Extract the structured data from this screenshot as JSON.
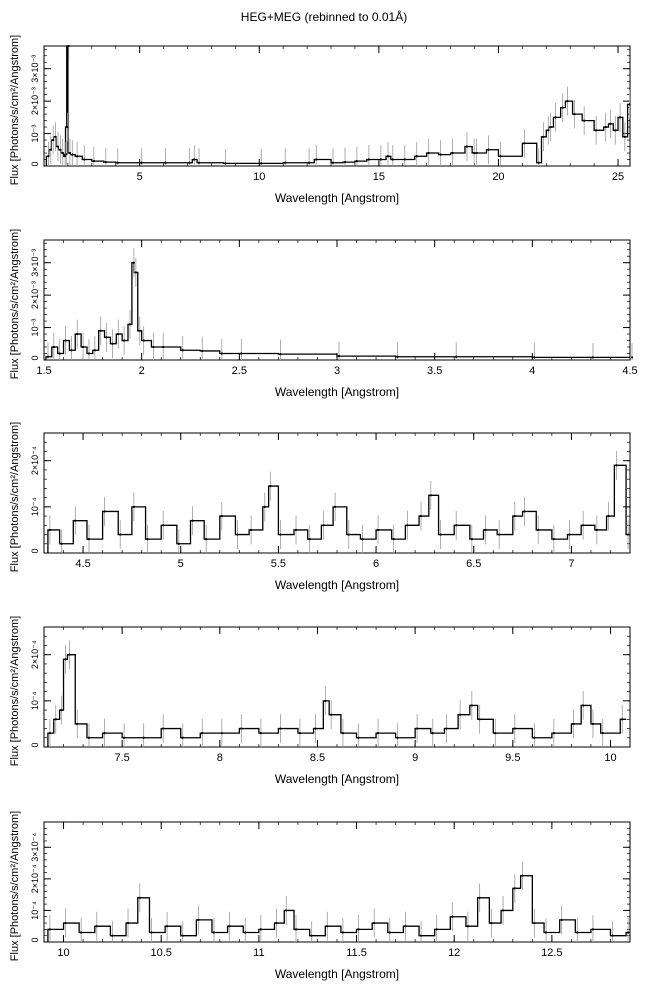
{
  "title": "HEG+MEG (rebinned to 0.01Å)",
  "chart_data": [
    {
      "type": "line",
      "xlabel": "Wavelength [Angstrom]",
      "ylabel": "Flux [Photons/s/cm²/Angstrom]",
      "xlim": [
        1.0,
        25.5
      ],
      "ylim": [
        0,
        0.0037
      ],
      "xticks": [
        5,
        10,
        15,
        20,
        25
      ],
      "xtick_labels": [
        "5",
        "10",
        "15",
        "20",
        "25"
      ],
      "yticks": [
        0.001,
        0.002,
        0.003
      ],
      "ytick_labels": [
        "10⁻³",
        "2×10⁻³",
        "3×10⁻³"
      ],
      "x": [
        1.1,
        1.2,
        1.3,
        1.4,
        1.5,
        1.6,
        1.7,
        1.8,
        1.85,
        1.9,
        1.95,
        2.0,
        2.1,
        2.3,
        2.6,
        3.0,
        3.5,
        4.0,
        5.0,
        6.0,
        7.0,
        7.2,
        7.4,
        8.5,
        10.0,
        11.0,
        12.0,
        12.3,
        13.0,
        13.5,
        14.0,
        14.5,
        15.0,
        15.3,
        15.5,
        16.0,
        16.5,
        17.0,
        17.5,
        18.0,
        18.6,
        18.9,
        19.0,
        19.5,
        20.0,
        21.0,
        21.6,
        21.8,
        22.0,
        22.1,
        22.3,
        22.6,
        22.8,
        23.1,
        23.5,
        24.0,
        24.4,
        24.6,
        24.8,
        25.0,
        25.2,
        25.4
      ],
      "y": [
        0.0003,
        0.0005,
        0.0008,
        0.0009,
        0.0006,
        0.0005,
        0.0004,
        0.0003,
        0.00036,
        0.0012,
        0.0037,
        0.0004,
        0.00035,
        0.0003,
        0.0002,
        0.00015,
        0.00012,
        0.0001,
        0.0001,
        0.0001,
        0.0001,
        0.0002,
        0.0001,
        8e-05,
        8e-05,
        0.0001,
        0.0001,
        0.0002,
        0.0001,
        0.00012,
        0.00015,
        0.0002,
        0.0002,
        0.0003,
        0.0002,
        0.0002,
        0.0003,
        0.0004,
        0.00035,
        0.0004,
        0.0006,
        0.0004,
        0.0004,
        0.0005,
        0.0003,
        0.0007,
        0.0001,
        0.0009,
        0.0011,
        0.0012,
        0.0015,
        0.0018,
        0.002,
        0.0016,
        0.0014,
        0.0011,
        0.0012,
        0.0013,
        0.0011,
        0.0015,
        0.0009,
        0.0019
      ]
    },
    {
      "type": "line",
      "xlabel": "Wavelength [Angstrom]",
      "ylabel": "Flux [Photons/s/cm²/Angstrom]",
      "xlim": [
        1.5,
        4.5
      ],
      "ylim": [
        0,
        0.0037
      ],
      "xticks": [
        1.5,
        2,
        2.5,
        3,
        3.5,
        4,
        4.5
      ],
      "xtick_labels": [
        "1.5",
        "2",
        "2.5",
        "3",
        "3.5",
        "4",
        "4.5"
      ],
      "yticks": [
        0.001,
        0.002,
        0.003
      ],
      "ytick_labels": [
        "10⁻³",
        "2×10⁻³",
        "3×10⁻³"
      ],
      "x": [
        1.51,
        1.54,
        1.57,
        1.6,
        1.63,
        1.66,
        1.69,
        1.72,
        1.75,
        1.78,
        1.81,
        1.84,
        1.87,
        1.9,
        1.93,
        1.95,
        1.96,
        1.98,
        2.0,
        2.05,
        2.1,
        2.2,
        2.3,
        2.4,
        2.5,
        2.7,
        3.0,
        3.3,
        3.6,
        4.0,
        4.3,
        4.5
      ],
      "y": [
        0.0001,
        0.0004,
        0.0002,
        0.0006,
        0.0003,
        0.0008,
        0.0004,
        0.0002,
        0.0003,
        0.0009,
        0.0007,
        0.0005,
        0.0008,
        0.0006,
        0.0011,
        0.003,
        0.0027,
        0.0009,
        0.0006,
        0.0004,
        0.0004,
        0.0003,
        0.00028,
        0.0002,
        0.0002,
        0.00018,
        0.00012,
        0.0001,
        0.0001,
        8e-05,
        8e-05,
        8e-05
      ]
    },
    {
      "type": "line",
      "xlabel": "Wavelength [Angstrom]",
      "ylabel": "Flux [Photons/s/cm²/Angstrom]",
      "xlim": [
        4.3,
        7.3
      ],
      "ylim": [
        0,
        0.00026
      ],
      "xticks": [
        4.5,
        5,
        5.5,
        6,
        6.5,
        7
      ],
      "xtick_labels": [
        "4.5",
        "5",
        "5.5",
        "6",
        "6.5",
        "7"
      ],
      "yticks": [
        0.0001,
        0.0002
      ],
      "ytick_labels": [
        "10⁻⁴",
        "2×10⁻⁴"
      ],
      "x": [
        4.32,
        4.38,
        4.45,
        4.52,
        4.6,
        4.68,
        4.75,
        4.82,
        4.9,
        4.98,
        5.05,
        5.12,
        5.2,
        5.28,
        5.35,
        5.42,
        5.45,
        5.5,
        5.58,
        5.65,
        5.72,
        5.78,
        5.85,
        5.92,
        6.0,
        6.08,
        6.15,
        6.22,
        6.27,
        6.32,
        6.4,
        6.48,
        6.55,
        6.62,
        6.7,
        6.75,
        6.82,
        6.9,
        6.98,
        7.05,
        7.12,
        7.18,
        7.22,
        7.28
      ],
      "y": [
        5e-05,
        2e-05,
        7e-05,
        3e-05,
        9e-05,
        4e-05,
        0.0001,
        3e-05,
        6e-05,
        2e-05,
        7e-05,
        3e-05,
        8e-05,
        4e-05,
        5e-05,
        0.0001,
        0.000145,
        4e-05,
        5e-05,
        3e-05,
        6e-05,
        0.0001,
        4e-05,
        3e-05,
        5e-05,
        3e-05,
        6e-05,
        8e-05,
        0.000125,
        4e-05,
        6e-05,
        3e-05,
        5e-05,
        4e-05,
        8e-05,
        9e-05,
        5e-05,
        3e-05,
        4e-05,
        6e-05,
        5e-05,
        8e-05,
        0.00019,
        4e-05
      ]
    },
    {
      "type": "line",
      "xlabel": "Wavelength [Angstrom]",
      "ylabel": "Flux [Photons/s/cm²/Angstrom]",
      "xlim": [
        7.1,
        10.1
      ],
      "ylim": [
        0,
        0.00026
      ],
      "xticks": [
        7.5,
        8,
        8.5,
        9,
        9.5,
        10
      ],
      "xtick_labels": [
        "7.5",
        "8",
        "8.5",
        "9",
        "9.5",
        "10"
      ],
      "yticks": [
        0.0001,
        0.0002
      ],
      "ytick_labels": [
        "10⁻⁴",
        "2×10⁻⁴"
      ],
      "x": [
        7.12,
        7.15,
        7.18,
        7.2,
        7.22,
        7.26,
        7.32,
        7.4,
        7.5,
        7.6,
        7.7,
        7.8,
        7.9,
        8.0,
        8.1,
        8.2,
        8.3,
        8.4,
        8.48,
        8.53,
        8.56,
        8.62,
        8.7,
        8.8,
        8.9,
        9.0,
        9.08,
        9.15,
        9.22,
        9.28,
        9.32,
        9.4,
        9.5,
        9.6,
        9.7,
        9.8,
        9.85,
        9.9,
        9.95,
        10.05
      ],
      "y": [
        3e-05,
        6e-05,
        8e-05,
        0.00019,
        0.0002,
        5e-05,
        2e-05,
        3e-05,
        2e-05,
        2e-05,
        4e-05,
        2e-05,
        3e-05,
        3e-05,
        4e-05,
        3e-05,
        4e-05,
        3e-05,
        4e-05,
        0.0001,
        7e-05,
        3e-05,
        2e-05,
        3e-05,
        2e-05,
        4e-05,
        3e-05,
        4e-05,
        7e-05,
        9e-05,
        6e-05,
        3e-05,
        4e-05,
        2e-05,
        3e-05,
        5e-05,
        9e-05,
        5e-05,
        3e-05,
        6e-05
      ]
    },
    {
      "type": "line",
      "xlabel": "Wavelength [Angstrom]",
      "ylabel": "Flux [Photons/s/cm²/Angstrom]",
      "xlim": [
        9.9,
        12.9
      ],
      "ylim": [
        0,
        0.00038
      ],
      "xticks": [
        10,
        10.5,
        11,
        11.5,
        12,
        12.5
      ],
      "xtick_labels": [
        "10",
        "10.5",
        "11",
        "11.5",
        "12",
        "12.5"
      ],
      "yticks": [
        0.0001,
        0.0002,
        0.0003
      ],
      "ytick_labels": [
        "10⁻⁴",
        "2×10⁻⁴",
        "3×10⁻⁴"
      ],
      "x": [
        9.92,
        10.0,
        10.08,
        10.16,
        10.24,
        10.32,
        10.38,
        10.44,
        10.52,
        10.6,
        10.68,
        10.76,
        10.84,
        10.92,
        11.0,
        11.08,
        11.13,
        11.18,
        11.26,
        11.34,
        11.42,
        11.5,
        11.58,
        11.66,
        11.74,
        11.82,
        11.9,
        11.98,
        12.06,
        12.12,
        12.18,
        12.24,
        12.3,
        12.34,
        12.4,
        12.46,
        12.54,
        12.62,
        12.7,
        12.8,
        12.88
      ],
      "y": [
        4e-05,
        6e-05,
        3e-05,
        5e-05,
        2e-05,
        6e-05,
        0.00014,
        3e-05,
        5e-05,
        2e-05,
        7e-05,
        3e-05,
        5e-05,
        3e-05,
        4e-05,
        6e-05,
        0.0001,
        4e-05,
        2e-05,
        5e-05,
        3e-05,
        4e-05,
        6e-05,
        3e-05,
        5e-05,
        2e-05,
        4e-05,
        8e-05,
        5e-05,
        0.00014,
        6e-05,
        0.0001,
        0.00017,
        0.00021,
        6e-05,
        3e-05,
        7e-05,
        3e-05,
        4e-05,
        2e-05,
        3e-05
      ]
    }
  ]
}
